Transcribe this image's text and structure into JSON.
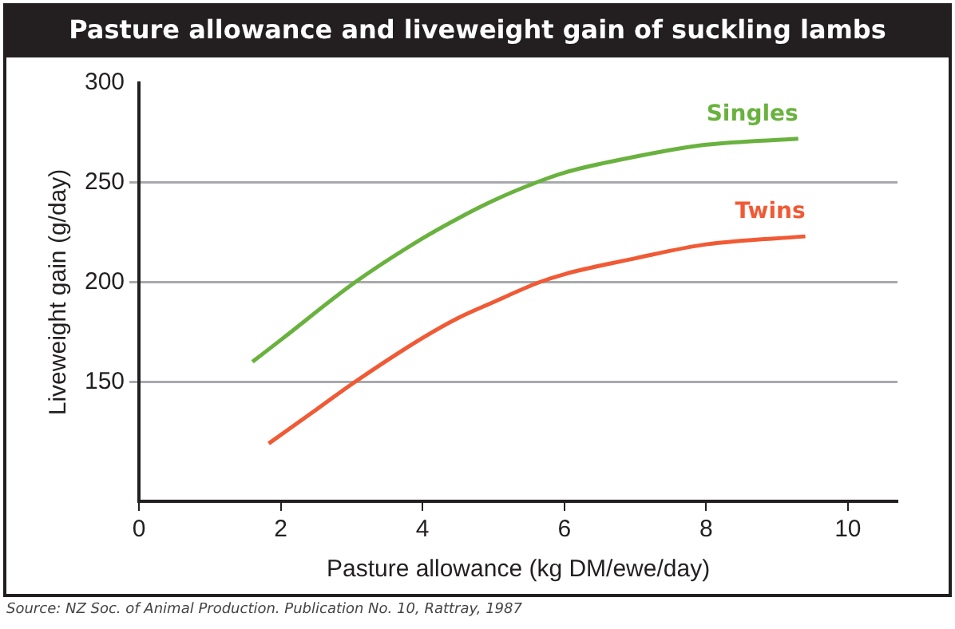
{
  "chart_data": {
    "type": "line",
    "title": "Pasture allowance and liveweight gain of suckling lambs",
    "xlabel": "Pasture allowance (kg DM/ewe/day)",
    "ylabel": "Liveweight gain (g/day)",
    "annotations": [
      "Source: NZ Soc. of Animal Production. Publication No. 10, Rattray, 1987"
    ],
    "series": [
      {
        "name": "Singles",
        "color": "#6ab23f",
        "x": [
          1.6,
          2,
          3.05,
          4,
          4.5,
          5,
          5.6,
          6,
          7,
          8,
          9.3
        ],
        "values": [
          160,
          171,
          200,
          222,
          232,
          241,
          250,
          255,
          263,
          269,
          272
        ]
      },
      {
        "name": "Twins",
        "color": "#f05a35",
        "x": [
          1.83,
          2.5,
          3.05,
          4,
          4.5,
          5,
          5.65,
          6,
          7,
          8,
          9.4
        ],
        "values": [
          119,
          136,
          150,
          172,
          182,
          190,
          200,
          204,
          212,
          219,
          223
        ]
      }
    ],
    "xlim": [
      0,
      10.7
    ],
    "xticks": [
      0,
      2,
      4,
      6,
      8,
      10
    ],
    "ylim": [
      90,
      300
    ],
    "yticks": [
      150,
      200,
      250,
      300
    ],
    "grid": "y",
    "legend": false,
    "marker": "none",
    "line_style": "solid"
  }
}
